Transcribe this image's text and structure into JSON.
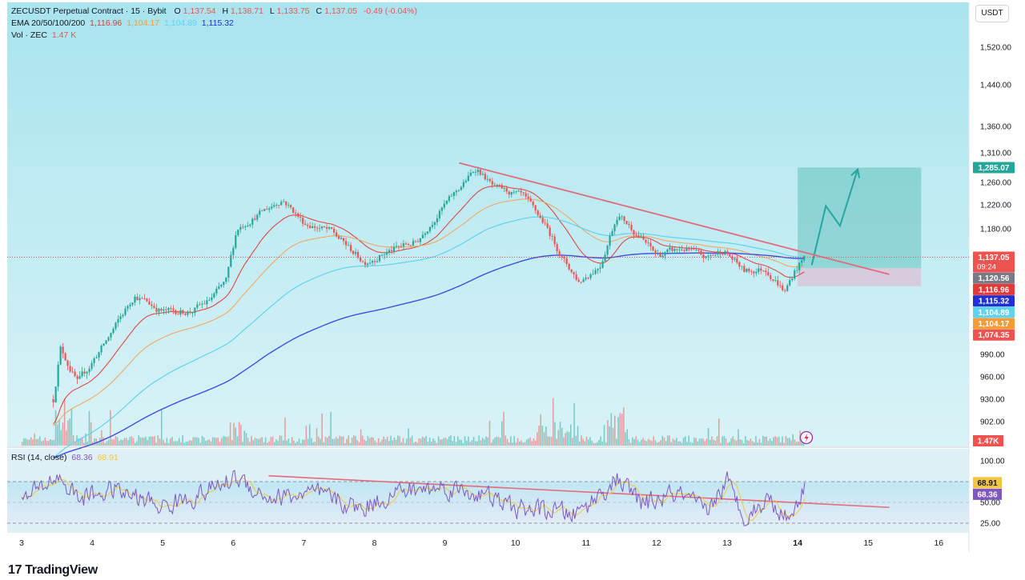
{
  "legend": {
    "symbol": "ZECUSDT Perpetual Contract · 15 · Bybit",
    "o_label": "O",
    "o": "1,137.54",
    "h_label": "H",
    "h": "1,138.71",
    "l_label": "L",
    "l": "1,133.75",
    "c_label": "C",
    "c": "1,137.05",
    "change": "-0.49 (-0.04%)",
    "ema_label": "EMA 20/50/100/200",
    "ema20": "1,116.96",
    "ema50": "1,104.17",
    "ema100": "1,104.89",
    "ema200": "1,115.32",
    "vol_label": "Vol · ZEC",
    "vol": "1.47 K",
    "rsi_label": "RSI (14, close)",
    "rsi": "68.36",
    "rsi_ma": "68.91"
  },
  "currency": "USDT",
  "logo": "TradingView",
  "colors": {
    "bg_top": "#a9e4ef",
    "bg_bottom": "#d9f3f7",
    "up": "#26a69a",
    "down": "#ef5350",
    "ema20": "#e53935",
    "ema50": "#f5a25a",
    "ema100": "#5fd3f0",
    "ema200": "#3e4fe0",
    "trend": "#e36b7c",
    "rsi": "#7e57c2",
    "rsi_ma": "#f5c542",
    "target": "#26a69a",
    "stop": "#f48fb1"
  },
  "chart_data": {
    "type": "candlestick",
    "symbol": "ZECUSDT",
    "timeframe": "15",
    "exchange": "Bybit",
    "x_ticks": [
      "3",
      "4",
      "5",
      "6",
      "7",
      "8",
      "9",
      "10",
      "11",
      "12",
      "13",
      "14",
      "15",
      "16"
    ],
    "y_ticks": [
      "1,520.00",
      "1,440.00",
      "1,360.00",
      "1,310.00",
      "1,260.00",
      "1,220.00",
      "1,180.00",
      "990.00",
      "960.00",
      "930.00",
      "902.00"
    ],
    "anchors": [
      {
        "day": 3.45,
        "price": 930
      },
      {
        "day": 3.55,
        "price": 1000
      },
      {
        "day": 3.8,
        "price": 950
      },
      {
        "day": 4.2,
        "price": 1010
      },
      {
        "day": 4.6,
        "price": 1080
      },
      {
        "day": 5.0,
        "price": 1055
      },
      {
        "day": 5.4,
        "price": 1055
      },
      {
        "day": 5.65,
        "price": 1070
      },
      {
        "day": 5.9,
        "price": 1100
      },
      {
        "day": 6.05,
        "price": 1180
      },
      {
        "day": 6.3,
        "price": 1200
      },
      {
        "day": 6.7,
        "price": 1230
      },
      {
        "day": 7.0,
        "price": 1190
      },
      {
        "day": 7.4,
        "price": 1175
      },
      {
        "day": 7.85,
        "price": 1130
      },
      {
        "day": 8.3,
        "price": 1150
      },
      {
        "day": 8.6,
        "price": 1160
      },
      {
        "day": 9.1,
        "price": 1235
      },
      {
        "day": 9.45,
        "price": 1285
      },
      {
        "day": 9.7,
        "price": 1250
      },
      {
        "day": 10.1,
        "price": 1235
      },
      {
        "day": 10.4,
        "price": 1190
      },
      {
        "day": 10.7,
        "price": 1130
      },
      {
        "day": 10.9,
        "price": 1100
      },
      {
        "day": 11.2,
        "price": 1125
      },
      {
        "day": 11.45,
        "price": 1205
      },
      {
        "day": 11.7,
        "price": 1175
      },
      {
        "day": 12.0,
        "price": 1140
      },
      {
        "day": 12.4,
        "price": 1150
      },
      {
        "day": 12.7,
        "price": 1135
      },
      {
        "day": 12.95,
        "price": 1148
      },
      {
        "day": 13.25,
        "price": 1115
      },
      {
        "day": 13.55,
        "price": 1120
      },
      {
        "day": 13.82,
        "price": 1085
      },
      {
        "day": 13.95,
        "price": 1115
      },
      {
        "day": 14.1,
        "price": 1137
      }
    ],
    "trendline_price": [
      {
        "day": 9.2,
        "price": 1293
      },
      {
        "day": 15.3,
        "price": 1111
      }
    ],
    "trendline_rsi": [
      {
        "day": 6.5,
        "rsi": 82
      },
      {
        "day": 15.3,
        "rsi": 44
      }
    ],
    "position": {
      "day_start": 14.0,
      "day_end": 15.75,
      "entry": 1120.56,
      "target": 1285.07,
      "stop": 1093,
      "projection": [
        {
          "day": 14.2,
          "price": 1125
        },
        {
          "day": 14.4,
          "price": 1218
        },
        {
          "day": 14.6,
          "price": 1185
        },
        {
          "day": 14.85,
          "price": 1282
        }
      ]
    },
    "price_labels": [
      {
        "text": "1,285.07",
        "price": 1285.07,
        "color": "#26a69a"
      },
      {
        "text": "1,137.05",
        "sub": "09:24",
        "price": 1137.05,
        "color": "#ef5350"
      },
      {
        "text": "1,120.56",
        "price": 1120.56,
        "color": "#787b86"
      },
      {
        "text": "1,116.96",
        "price": 1116.96,
        "color": "#e53935"
      },
      {
        "text": "1,115.32",
        "price": 1115.32,
        "color": "#2130cf"
      },
      {
        "text": "1,104.89",
        "price": 1104.89,
        "color": "#5fd3f0"
      },
      {
        "text": "1,104.17",
        "price": 1104.17,
        "color": "#f59b38"
      },
      {
        "text": "1,074.35",
        "price": 1074.35,
        "color": "#ef5350"
      }
    ],
    "vol_label": "1.47K",
    "rsi_ticks": [
      "100.00",
      "50.00",
      "25.00"
    ],
    "rsi_labels": [
      {
        "text": "68.91",
        "rsi": 68.91,
        "color": "#f5c542"
      },
      {
        "text": "68.36",
        "rsi": 68.36,
        "color": "#7e57c2"
      }
    ],
    "rsi_anchors": [
      {
        "day": 3.0,
        "rsi": 50
      },
      {
        "day": 3.5,
        "rsi": 82
      },
      {
        "day": 3.8,
        "rsi": 55
      },
      {
        "day": 4.3,
        "rsi": 65
      },
      {
        "day": 5.0,
        "rsi": 45
      },
      {
        "day": 5.5,
        "rsi": 58
      },
      {
        "day": 6.05,
        "rsi": 80
      },
      {
        "day": 6.5,
        "rsi": 55
      },
      {
        "day": 7.2,
        "rsi": 60
      },
      {
        "day": 7.8,
        "rsi": 42
      },
      {
        "day": 8.3,
        "rsi": 62
      },
      {
        "day": 9.0,
        "rsi": 68
      },
      {
        "day": 9.5,
        "rsi": 60
      },
      {
        "day": 10.0,
        "rsi": 42
      },
      {
        "day": 10.5,
        "rsi": 40
      },
      {
        "day": 10.85,
        "rsi": 35
      },
      {
        "day": 11.45,
        "rsi": 78
      },
      {
        "day": 11.8,
        "rsi": 48
      },
      {
        "day": 12.3,
        "rsi": 60
      },
      {
        "day": 12.7,
        "rsi": 38
      },
      {
        "day": 13.0,
        "rsi": 75
      },
      {
        "day": 13.25,
        "rsi": 32
      },
      {
        "day": 13.6,
        "rsi": 55
      },
      {
        "day": 13.85,
        "rsi": 30
      },
      {
        "day": 14.1,
        "rsi": 68
      }
    ]
  }
}
